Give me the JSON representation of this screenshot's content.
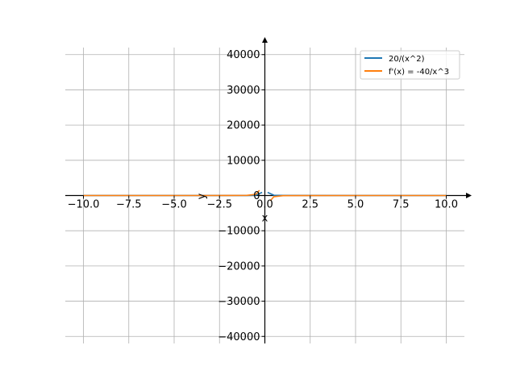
{
  "chart_data": {
    "type": "line",
    "xlabel": "x",
    "ylabel": "y",
    "xlim": [
      -11.0,
      11.0
    ],
    "ylim": [
      -42000,
      42000
    ],
    "grid": true,
    "legend_position": "top-right",
    "x_ticks": [
      -10.0,
      -7.5,
      -5.0,
      -2.5,
      0.0,
      2.5,
      5.0,
      7.5,
      10.0
    ],
    "x_tick_labels": [
      "−10.0",
      "−7.5",
      "−5.0",
      "−2.5",
      "0.0",
      "2.5",
      "5.0",
      "7.5",
      "10.0"
    ],
    "y_ticks": [
      -40000,
      -30000,
      -20000,
      -10000,
      0,
      10000,
      20000,
      30000,
      40000
    ],
    "y_tick_labels": [
      "−40000",
      "−30000",
      "−20000",
      "−10000",
      "0",
      "10000",
      "20000",
      "30000",
      "40000"
    ],
    "series": [
      {
        "name": "20/(x^2)",
        "color": "#1f77b4",
        "x": [
          -10,
          -5,
          -2,
          -1,
          -0.5,
          -0.15,
          0.15,
          0.5,
          1,
          2,
          5,
          10
        ],
        "y": [
          0.2,
          0.8,
          5,
          20,
          80,
          889,
          889,
          80,
          20,
          5,
          0.8,
          0.2
        ]
      },
      {
        "name": "f'(x) = -40/x^3",
        "color": "#ff7f0e",
        "x": [
          -10,
          -5,
          -2,
          -1,
          -0.5,
          -0.3,
          0.3,
          0.5,
          1,
          2,
          5,
          10
        ],
        "y": [
          0.04,
          0.32,
          5,
          40,
          320,
          1481,
          -1481,
          -320,
          -40,
          -5,
          -0.32,
          -0.04
        ]
      }
    ]
  }
}
